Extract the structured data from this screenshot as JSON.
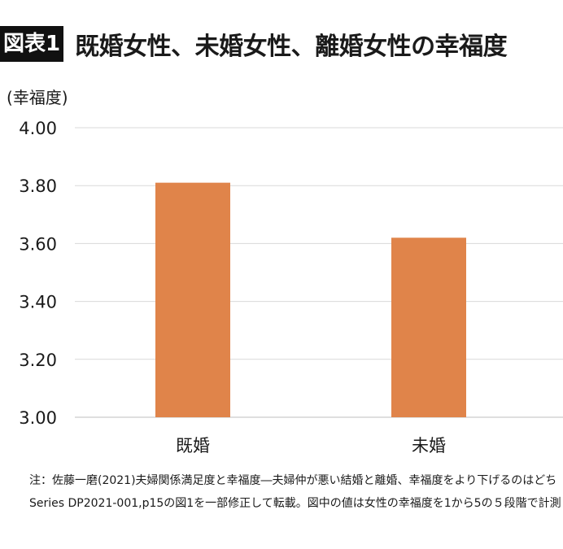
{
  "header": {
    "badge": "図表1",
    "title": "既婚女性、未婚女性、離婚女性の幸福度"
  },
  "chart_data": {
    "type": "bar",
    "title": "既婚女性、未婚女性、離婚女性の幸福度",
    "ylabel": "(幸福度)",
    "xlabel": "",
    "categories": [
      "既婚",
      "未婚"
    ],
    "values": [
      3.81,
      3.62
    ],
    "ylim": [
      3.0,
      4.0
    ],
    "yticks": [
      "3.00",
      "3.20",
      "3.40",
      "3.60",
      "3.80",
      "4.00"
    ],
    "bar_color": "#E0844A",
    "grid": true,
    "legend": "none"
  },
  "notes": {
    "line1": "注：佐藤一磨(2021)夫婦関係満足度と幸福度―夫婦仲が悪い結婚と離婚、幸福度をより下げるのはどち",
    "line2": "Series DP2021-001,p15の図1を一部修正して転載。図中の値は女性の幸福度を1から5の５段階で計測"
  }
}
